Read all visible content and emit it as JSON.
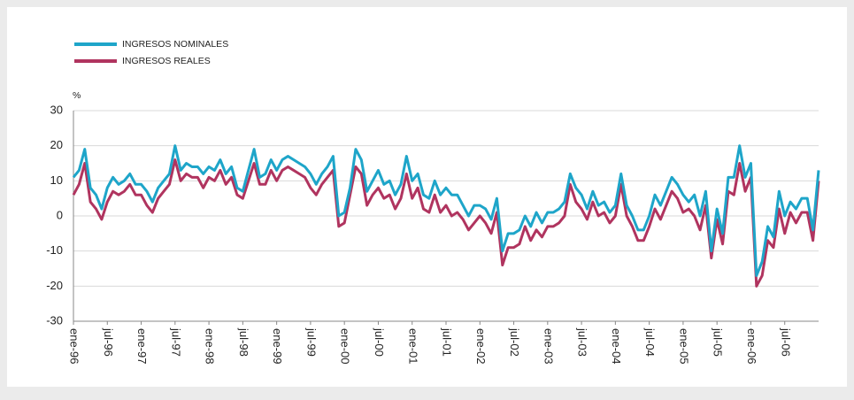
{
  "chart_data": {
    "type": "line",
    "y_label": "%",
    "ylim": [
      -30,
      30
    ],
    "yticks": [
      -30,
      -20,
      -10,
      0,
      10,
      20,
      30
    ],
    "grid": true,
    "categories": [
      "ene-96",
      null,
      null,
      null,
      null,
      null,
      "jul-96",
      null,
      null,
      null,
      null,
      null,
      "ene-97",
      null,
      null,
      null,
      null,
      null,
      "jul-97",
      null,
      null,
      null,
      null,
      null,
      "ene-98",
      null,
      null,
      null,
      null,
      null,
      "jul-98",
      null,
      null,
      null,
      null,
      null,
      "ene-99",
      null,
      null,
      null,
      null,
      null,
      "jul-99",
      null,
      null,
      null,
      null,
      null,
      "ene-00",
      null,
      null,
      null,
      null,
      null,
      "jul-00",
      null,
      null,
      null,
      null,
      null,
      "ene-01",
      null,
      null,
      null,
      null,
      null,
      "jul-01",
      null,
      null,
      null,
      null,
      null,
      "ene-02",
      null,
      null,
      null,
      null,
      null,
      "jul-02",
      null,
      null,
      null,
      null,
      null,
      "ene-03",
      null,
      null,
      null,
      null,
      null,
      "jul-03",
      null,
      null,
      null,
      null,
      null,
      "ene-04",
      null,
      null,
      null,
      null,
      null,
      "jul-04",
      null,
      null,
      null,
      null,
      null,
      "ene-05",
      null,
      null,
      null,
      null,
      null,
      "jul-05",
      null,
      null,
      null,
      null,
      null,
      "ene-06",
      null,
      null,
      null,
      null,
      null,
      "jul-06",
      null,
      null,
      null,
      null,
      null,
      null
    ],
    "series": [
      {
        "name": "INGRESOS NOMINALES",
        "color": "#1ea5c9",
        "values": [
          11,
          13,
          19,
          8,
          6,
          2,
          8,
          11,
          9,
          10,
          12,
          9,
          9,
          7,
          4,
          8,
          10,
          12,
          20,
          13,
          15,
          14,
          14,
          12,
          14,
          13,
          16,
          12,
          14,
          8,
          7,
          13,
          19,
          11,
          12,
          16,
          13,
          16,
          17,
          16,
          15,
          14,
          12,
          9,
          12,
          14,
          17,
          0,
          1,
          8,
          19,
          16,
          7,
          10,
          13,
          9,
          10,
          6,
          9,
          17,
          10,
          12,
          6,
          5,
          10,
          6,
          8,
          6,
          6,
          3,
          0,
          3,
          3,
          2,
          -1,
          5,
          -10,
          -5,
          -5,
          -4,
          0,
          -3,
          1,
          -2,
          1,
          1,
          2,
          4,
          12,
          8,
          6,
          2,
          7,
          3,
          4,
          1,
          3,
          12,
          3,
          0,
          -4,
          -4,
          0,
          6,
          3,
          7,
          11,
          9,
          6,
          4,
          6,
          0,
          7,
          -10,
          2,
          -5,
          11,
          11,
          20,
          11,
          15,
          -17,
          -13,
          -3,
          -6,
          7,
          0,
          4,
          2,
          5,
          5,
          -4,
          13
        ]
      },
      {
        "name": "INGRESOS REALES",
        "color": "#b0345f",
        "values": [
          6,
          9,
          15,
          4,
          2,
          -1,
          4,
          7,
          6,
          7,
          9,
          6,
          6,
          3,
          1,
          5,
          7,
          9,
          16,
          10,
          12,
          11,
          11,
          8,
          11,
          10,
          13,
          9,
          11,
          6,
          5,
          10,
          15,
          9,
          9,
          13,
          10,
          13,
          14,
          13,
          12,
          11,
          8,
          6,
          9,
          11,
          13,
          -3,
          -2,
          6,
          14,
          12,
          3,
          6,
          8,
          5,
          6,
          2,
          5,
          12,
          5,
          8,
          2,
          1,
          6,
          1,
          3,
          0,
          1,
          -1,
          -4,
          -2,
          0,
          -2,
          -5,
          1,
          -14,
          -9,
          -9,
          -8,
          -3,
          -7,
          -4,
          -6,
          -3,
          -3,
          -2,
          0,
          9,
          4,
          2,
          -1,
          4,
          0,
          1,
          -2,
          0,
          9,
          0,
          -3,
          -7,
          -7,
          -3,
          2,
          -1,
          3,
          7,
          5,
          1,
          2,
          0,
          -4,
          3,
          -12,
          -1,
          -8,
          7,
          6,
          15,
          7,
          11,
          -20,
          -17,
          -7,
          -9,
          2,
          -5,
          1,
          -2,
          1,
          1,
          -7,
          10
        ]
      }
    ]
  }
}
